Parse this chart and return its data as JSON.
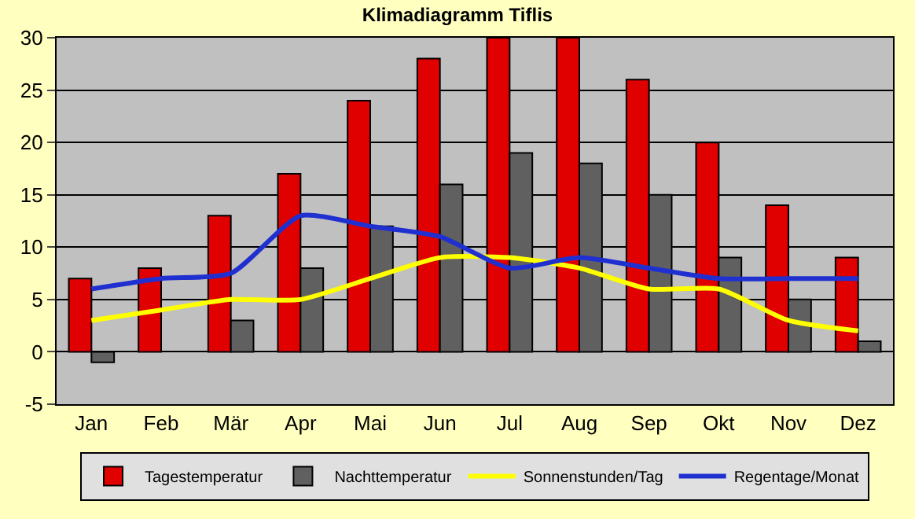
{
  "chart_data": {
    "type": "bar",
    "title": "Klimadiagramm Tiflis",
    "categories": [
      "Jan",
      "Feb",
      "Mär",
      "Apr",
      "Mai",
      "Jun",
      "Jul",
      "Aug",
      "Sep",
      "Okt",
      "Nov",
      "Dez"
    ],
    "series": [
      {
        "name": "Tagestemperatur",
        "color": "#e00000",
        "values": [
          7,
          8,
          13,
          17,
          24,
          28,
          30,
          30,
          26,
          20,
          14,
          9
        ]
      },
      {
        "name": "Nachttemperatur",
        "color": "#606060",
        "values": [
          -1,
          null,
          3,
          8,
          12,
          16,
          19,
          18,
          15,
          9,
          5,
          1
        ]
      },
      {
        "name": "Sonnenstunden/Tag",
        "color": "#ffff00",
        "type": "line",
        "values": [
          3,
          4,
          5,
          5,
          7,
          9,
          9,
          8,
          6,
          6,
          3,
          2
        ]
      },
      {
        "name": "Regentage/Monat",
        "color": "#2030d0",
        "type": "line",
        "values": [
          6,
          7,
          7.5,
          13,
          12,
          11,
          8,
          9,
          8,
          7,
          7,
          7
        ]
      }
    ],
    "ylim": [
      -5,
      30
    ],
    "yticks": [
      -5,
      0,
      5,
      10,
      15,
      20,
      25,
      30
    ],
    "grid": "y",
    "legend": "bottom",
    "marker": "none",
    "line_style": "solid"
  }
}
